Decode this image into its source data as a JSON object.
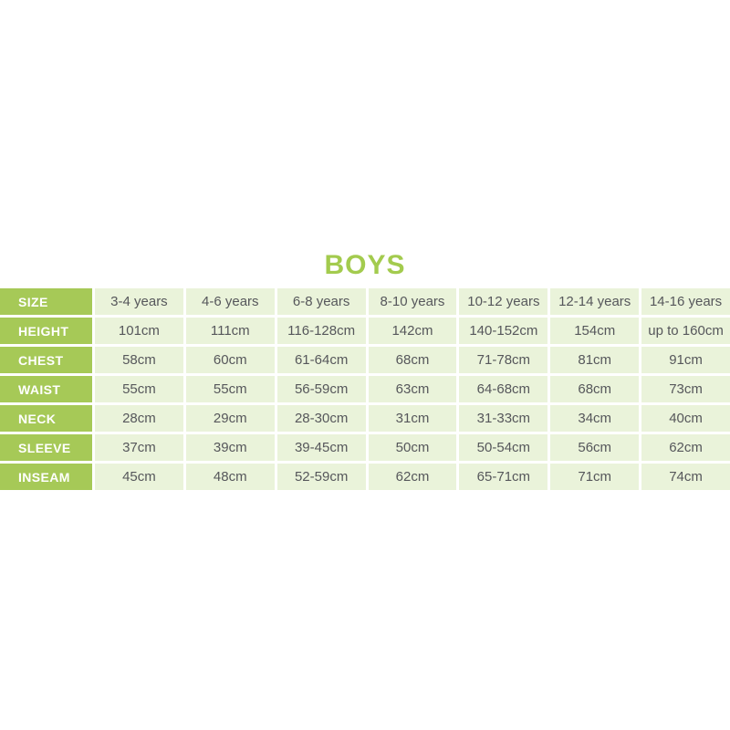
{
  "title": "BOYS",
  "colors": {
    "title_green": "#a3cb4e",
    "header_green": "#a6c957",
    "cell_green": "#eaf3da",
    "cell_text": "#56575b",
    "label_text": "#ffffff",
    "background": "#ffffff"
  },
  "chart_data": {
    "type": "table",
    "title": "BOYS",
    "row_headers": [
      "SIZE",
      "HEIGHT",
      "CHEST",
      "WAIST",
      "NECK",
      "SLEEVE",
      "INSEAM"
    ],
    "rows": [
      {
        "label": "SIZE",
        "values": [
          "3-4 years",
          "4-6 years",
          "6-8 years",
          "8-10 years",
          "10-12 years",
          "12-14 years",
          "14-16 years"
        ]
      },
      {
        "label": "HEIGHT",
        "values": [
          "101cm",
          "111cm",
          "116-128cm",
          "142cm",
          "140-152cm",
          "154cm",
          "up to 160cm"
        ]
      },
      {
        "label": "CHEST",
        "values": [
          "58cm",
          "60cm",
          "61-64cm",
          "68cm",
          "71-78cm",
          "81cm",
          "91cm"
        ]
      },
      {
        "label": "WAIST",
        "values": [
          "55cm",
          "55cm",
          "56-59cm",
          "63cm",
          "64-68cm",
          "68cm",
          "73cm"
        ]
      },
      {
        "label": "NECK",
        "values": [
          "28cm",
          "29cm",
          "28-30cm",
          "31cm",
          "31-33cm",
          "34cm",
          "40cm"
        ]
      },
      {
        "label": "SLEEVE",
        "values": [
          "37cm",
          "39cm",
          "39-45cm",
          "50cm",
          "50-54cm",
          "56cm",
          "62cm"
        ]
      },
      {
        "label": "INSEAM",
        "values": [
          "45cm",
          "48cm",
          "52-59cm",
          "62cm",
          "65-71cm",
          "71cm",
          "74cm"
        ]
      }
    ]
  }
}
